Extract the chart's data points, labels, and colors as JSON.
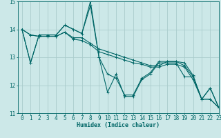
{
  "xlabel": "Humidex (Indice chaleur)",
  "ylabel": "",
  "xlim": [
    -0.5,
    23
  ],
  "ylim": [
    11,
    15
  ],
  "yticks": [
    11,
    12,
    13,
    14,
    15
  ],
  "xticks": [
    0,
    1,
    2,
    3,
    4,
    5,
    6,
    7,
    8,
    9,
    10,
    11,
    12,
    13,
    14,
    15,
    16,
    17,
    18,
    19,
    20,
    21,
    22,
    23
  ],
  "bg_color": "#cce8e8",
  "grid_color": "#aacccc",
  "line_color": "#006666",
  "lines": [
    [
      14.0,
      12.8,
      13.8,
      13.8,
      13.8,
      14.15,
      14.0,
      13.85,
      15.0,
      13.0,
      11.75,
      12.4,
      11.6,
      11.6,
      12.2,
      12.4,
      12.8,
      12.8,
      12.8,
      12.3,
      12.3,
      11.5,
      11.9,
      11.2
    ],
    [
      14.0,
      13.8,
      13.75,
      13.75,
      13.75,
      13.9,
      13.7,
      13.7,
      13.5,
      13.3,
      13.2,
      13.1,
      13.0,
      12.9,
      12.8,
      12.7,
      12.7,
      12.85,
      12.85,
      12.7,
      12.3,
      11.5,
      11.5,
      11.2
    ],
    [
      14.0,
      13.8,
      13.75,
      13.75,
      13.75,
      13.9,
      13.65,
      13.6,
      13.45,
      13.2,
      13.1,
      13.0,
      12.9,
      12.8,
      12.75,
      12.65,
      12.65,
      12.75,
      12.75,
      12.65,
      12.2,
      11.5,
      11.5,
      11.2
    ],
    [
      14.0,
      12.8,
      13.8,
      13.8,
      13.8,
      14.15,
      14.0,
      13.85,
      14.85,
      13.0,
      12.4,
      12.25,
      11.65,
      11.65,
      12.25,
      12.45,
      12.85,
      12.85,
      12.85,
      12.8,
      12.35,
      11.5,
      11.9,
      11.2
    ]
  ],
  "marker": "+",
  "markersize": 3,
  "linewidth": 0.8,
  "label_fontsize": 6,
  "tick_fontsize": 5.5
}
